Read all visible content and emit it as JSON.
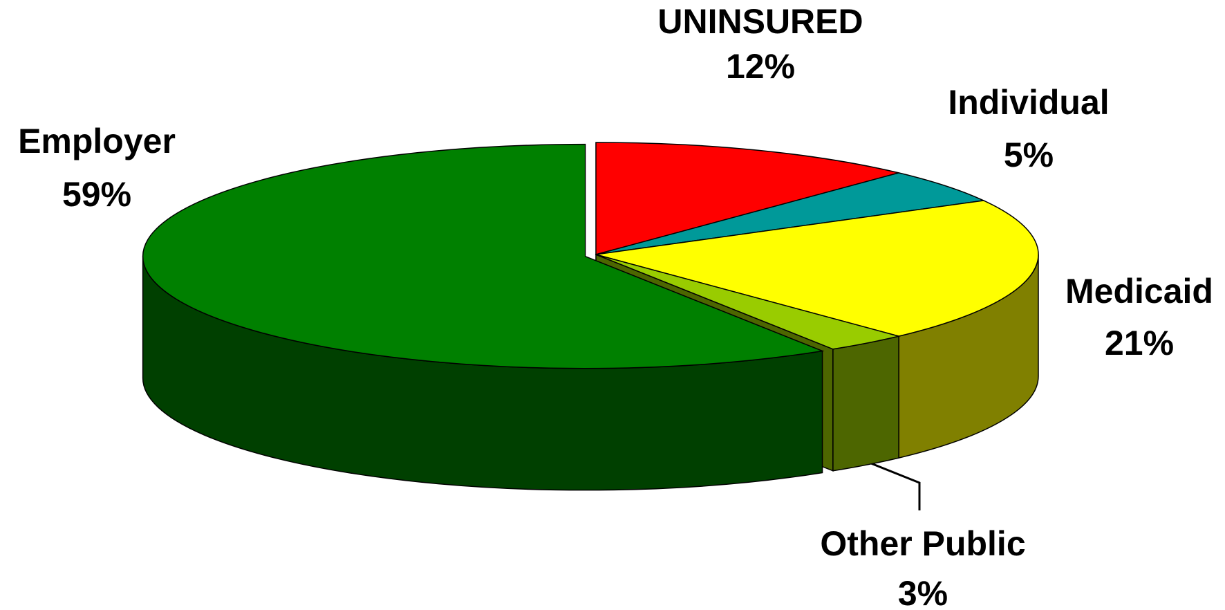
{
  "chart_data": {
    "type": "pie",
    "categories": [
      "UNINSURED",
      "Individual",
      "Medicaid",
      "Other Public",
      "Employer"
    ],
    "values": [
      12,
      5,
      21,
      3,
      59
    ],
    "value_labels": [
      "12%",
      "5%",
      "21%",
      "3%",
      "59%"
    ],
    "colors": [
      "#ff0000",
      "#009999",
      "#ffff00",
      "#99cc00",
      "#008000"
    ],
    "side_colors": [
      "#800000",
      "#004d4d",
      "#808000",
      "#4d6600",
      "#004000"
    ]
  }
}
